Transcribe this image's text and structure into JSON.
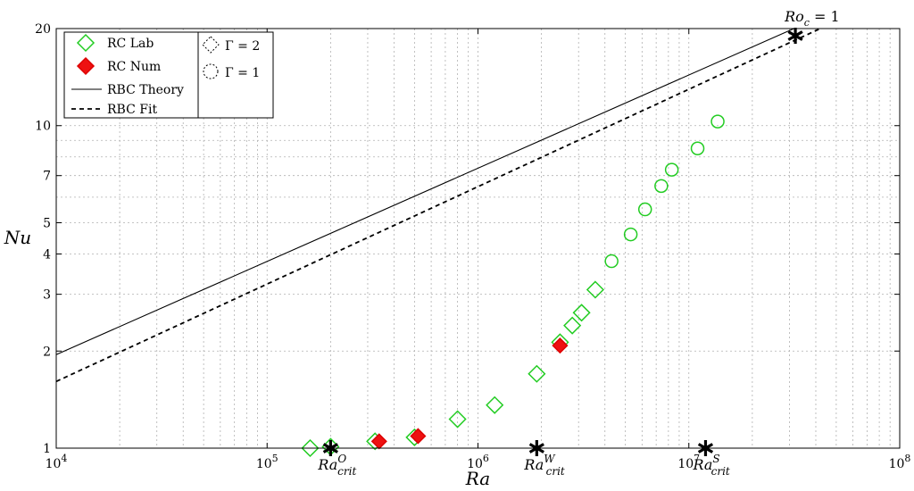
{
  "chart_data": {
    "type": "scatter",
    "xlabel": "Ra",
    "ylabel": "Nu",
    "xscale": "log",
    "yscale": "log",
    "xlim": [
      10000,
      100000000
    ],
    "ylim": [
      1,
      20
    ],
    "grid": true,
    "legend_placement": "top-left",
    "x_ticks": [
      {
        "value": 10000,
        "base": "10",
        "exp": "4"
      },
      {
        "value": 100000,
        "base": "10",
        "exp": "5"
      },
      {
        "value": 1000000,
        "base": "10",
        "exp": "6"
      },
      {
        "value": 10000000,
        "base": "10",
        "exp": "7"
      },
      {
        "value": 100000000,
        "base": "10",
        "exp": "8"
      }
    ],
    "y_ticks": [
      {
        "value": 1,
        "label": "1"
      },
      {
        "value": 2,
        "label": "2"
      },
      {
        "value": 3,
        "label": "3"
      },
      {
        "value": 4,
        "label": "4"
      },
      {
        "value": 5,
        "label": "5"
      },
      {
        "value": 7,
        "label": "7"
      },
      {
        "value": 10,
        "label": "10"
      },
      {
        "value": 20,
        "label": "20"
      }
    ],
    "series": [
      {
        "name": "RC  Lab",
        "marker": "diamond",
        "color": "#22cc22",
        "fill": "none",
        "points": [
          [
            160000,
            1.0
          ],
          [
            200000,
            1.01
          ],
          [
            325000,
            1.05
          ],
          [
            500000,
            1.08
          ],
          [
            800000,
            1.23
          ],
          [
            1200000,
            1.36
          ],
          [
            1900000,
            1.7
          ],
          [
            2450000,
            2.13
          ],
          [
            2800000,
            2.4
          ],
          [
            3100000,
            2.63
          ],
          [
            3600000,
            3.1
          ]
        ]
      },
      {
        "name": "RC  Lab",
        "marker": "circle",
        "color": "#22cc22",
        "fill": "none",
        "points": [
          [
            4300000,
            3.8
          ],
          [
            5300000,
            4.6
          ],
          [
            6200000,
            5.5
          ],
          [
            7400000,
            6.5
          ],
          [
            8300000,
            7.3
          ],
          [
            11000000,
            8.5
          ],
          [
            13700000,
            10.3
          ]
        ]
      },
      {
        "name": "RC  Num",
        "marker": "diamond",
        "color": "#dd0000",
        "fill": "#ee1111",
        "points": [
          [
            340000,
            1.05
          ],
          [
            520000,
            1.09
          ],
          [
            2450000,
            2.08
          ]
        ]
      },
      {
        "name": "RBC Theory",
        "type": "line",
        "style": "solid",
        "color": "#000000",
        "points": [
          [
            10000,
            1.95
          ],
          [
            31500000,
            20.0
          ]
        ]
      },
      {
        "name": "RBC Fit",
        "type": "line",
        "style": "dashed",
        "color": "#000000",
        "points": [
          [
            10000,
            1.61
          ],
          [
            42000000,
            20.0
          ]
        ]
      }
    ],
    "legend": {
      "entries": [
        {
          "label": "RC  Lab",
          "marker": "diamond",
          "color": "#22cc22",
          "fill": "none"
        },
        {
          "label": "RC  Num",
          "marker": "diamond",
          "color": "#dd0000",
          "fill": "#ee1111"
        },
        {
          "label": "RBC Theory",
          "marker": "solid-line",
          "color": "#000000"
        },
        {
          "label": "RBC Fit",
          "marker": "dashed-line",
          "color": "#000000"
        }
      ],
      "shape_entries": [
        {
          "symbol": "Γ",
          "eq": "= 2",
          "marker": "dashed-diamond"
        },
        {
          "symbol": "Γ",
          "eq": "= 1",
          "marker": "dashed-circle"
        }
      ]
    },
    "annotations": [
      {
        "marker": "asterisk",
        "x": 32000000,
        "y": 19.0,
        "base": "Ro",
        "sub": "c",
        "rest": " = 1"
      },
      {
        "marker": "asterisk",
        "x": 200000,
        "y": 1.0,
        "base": "Ra",
        "sub": "crit",
        "sup": "O"
      },
      {
        "marker": "asterisk",
        "x": 1900000,
        "y": 1.0,
        "base": "Ra",
        "sub": "crit",
        "sup": "W"
      },
      {
        "marker": "asterisk",
        "x": 12000000,
        "y": 1.0,
        "base": "Ra",
        "sub": "crit",
        "sup": "S"
      }
    ]
  }
}
